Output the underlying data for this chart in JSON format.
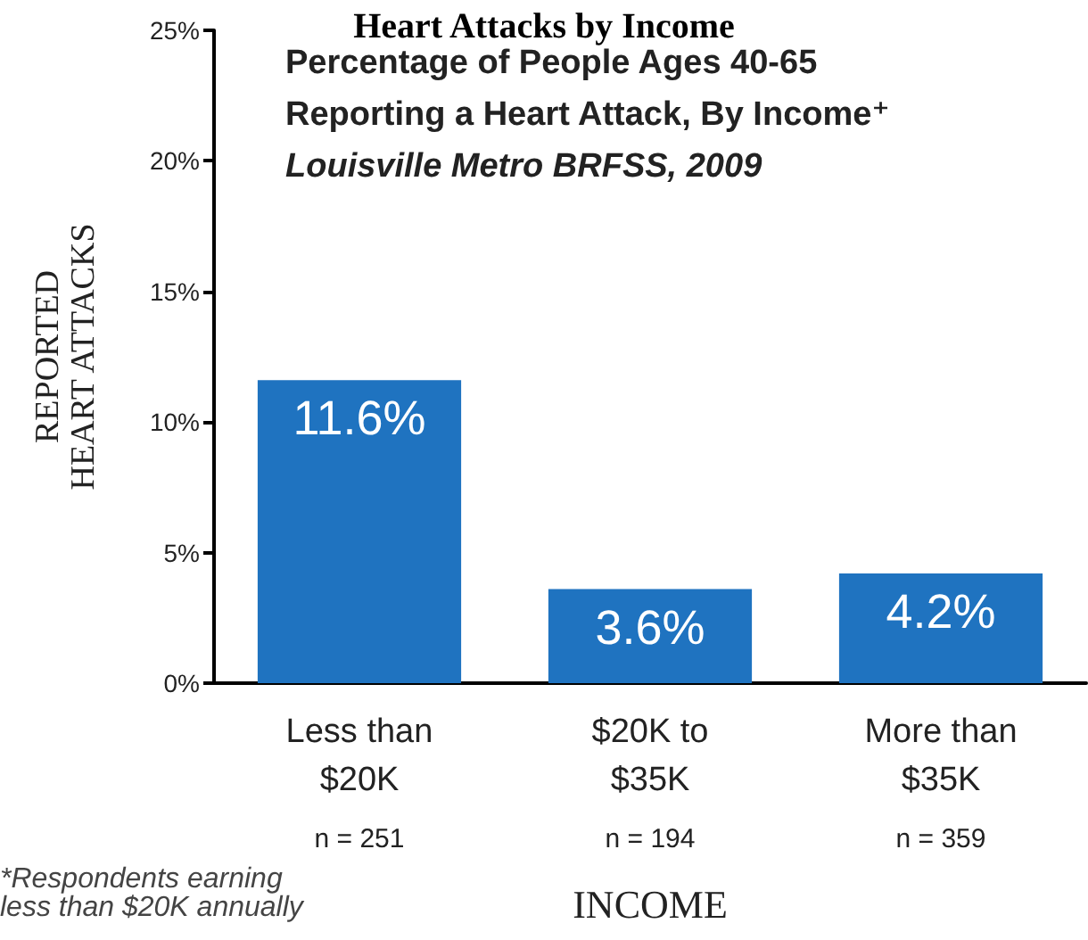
{
  "chart_data": {
    "type": "bar",
    "title": "Heart Attacks by Income",
    "subtitle": "Percentage of People Ages 40-65\nReporting a Heart Attack, By Income⁺\nLouisville Metro BRFSS, 2009",
    "xlabel": "INCOME",
    "ylabel": "REPORTED\nHEART ATTACKS",
    "categories": [
      "Less than\n$20K",
      "$20K to\n$35K",
      "More than\n$35K"
    ],
    "values": [
      11.6,
      3.6,
      4.2
    ],
    "color": "#1f73c0",
    "value_labels": [
      "11.6%",
      "3.6%",
      "4.2%"
    ],
    "ylim": [
      0,
      25
    ],
    "yticks": [
      {
        "value": 0,
        "label": "0%"
      },
      {
        "value": 5,
        "label": "5%"
      },
      {
        "value": 10,
        "label": "10%"
      },
      {
        "value": 15,
        "label": "15%"
      },
      {
        "value": 20,
        "label": "20%"
      },
      {
        "value": 25,
        "label": "25%"
      }
    ],
    "annotations": [
      "n = 251",
      "n = 194",
      "n = 359",
      "*Respondents earning less than $20K annually"
    ]
  }
}
